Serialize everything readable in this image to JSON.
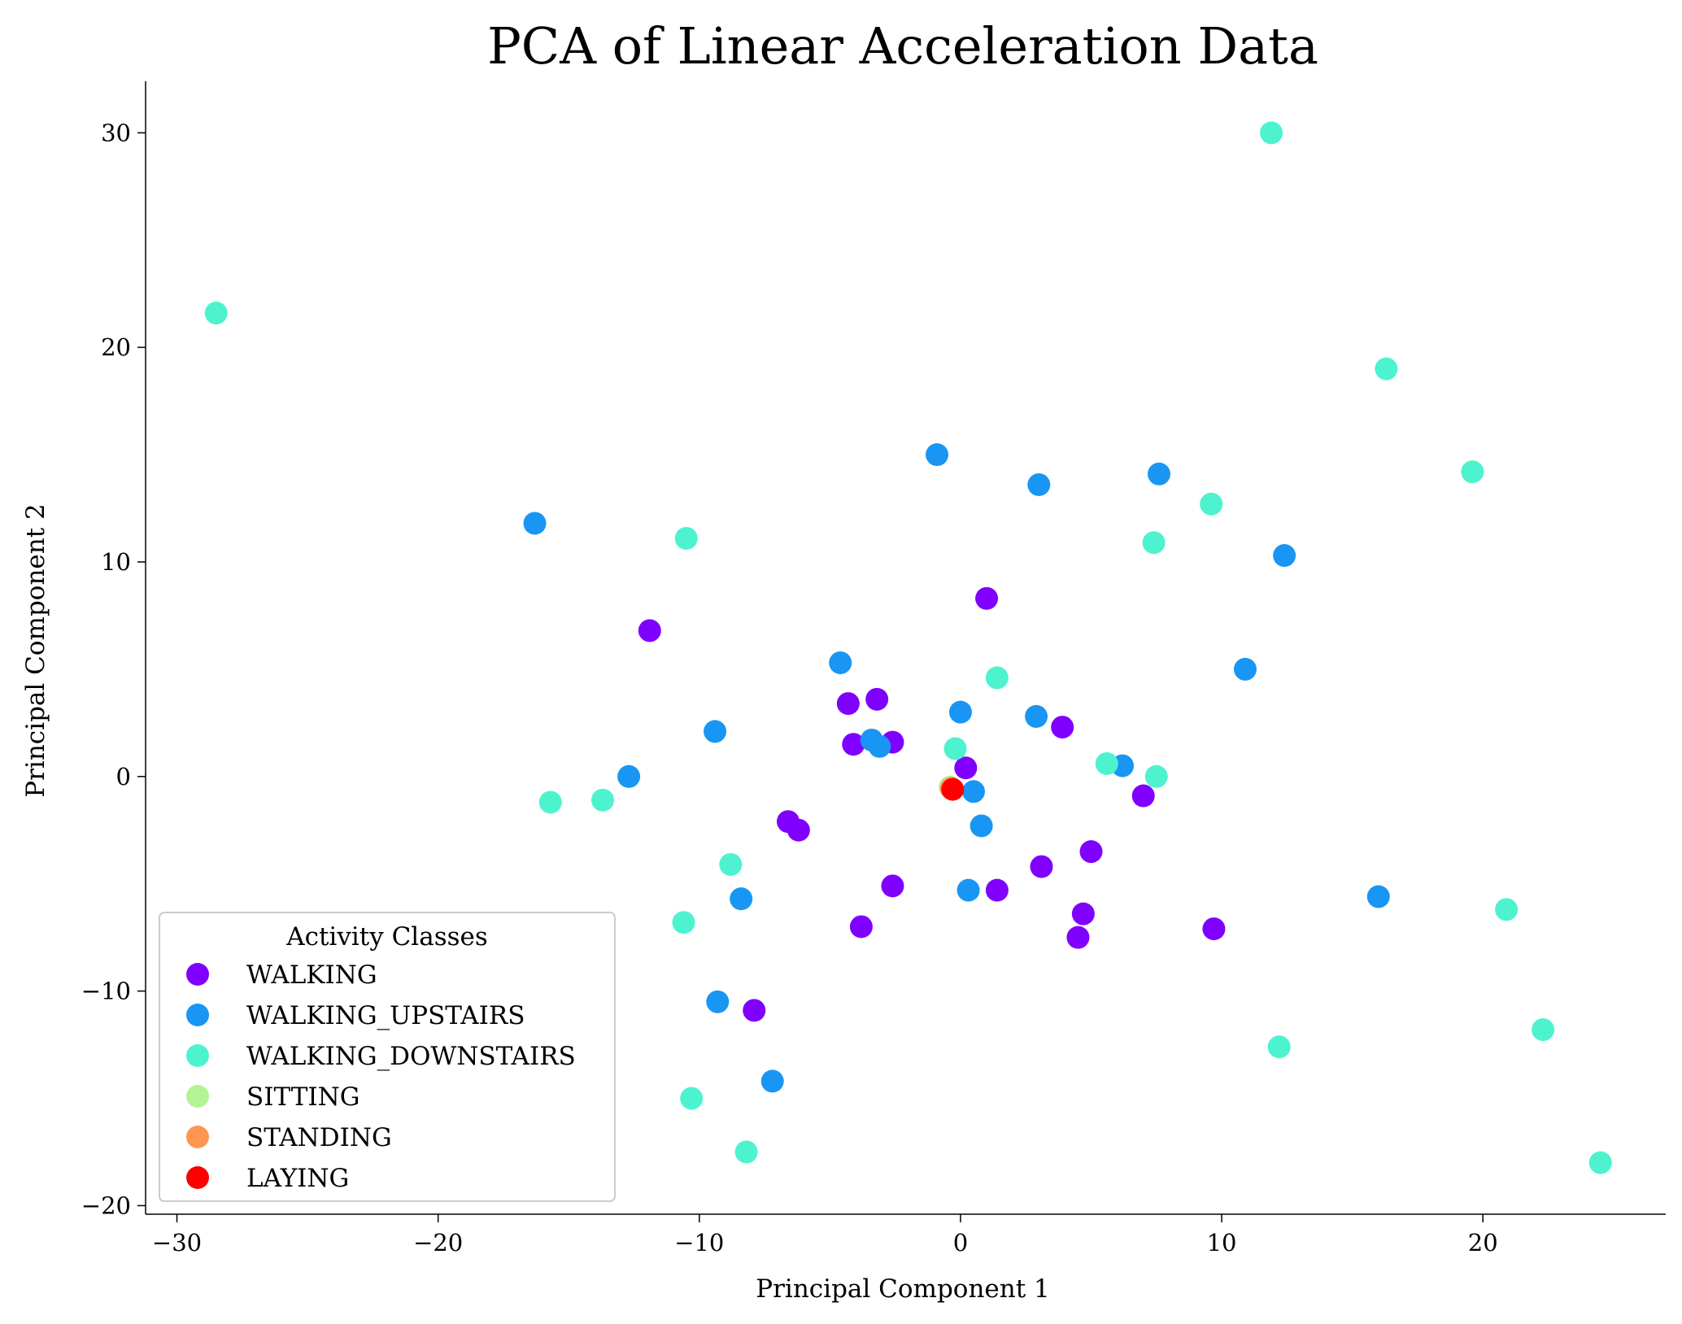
{
  "chart_data": {
    "type": "scatter",
    "title": "PCA of Linear Acceleration Data",
    "xlabel": "Principal Component 1",
    "ylabel": "Principal Component 2",
    "xlim": [
      -31.2,
      27.0
    ],
    "ylim": [
      -20.4,
      32.4
    ],
    "xticks": [
      -30,
      -20,
      -10,
      0,
      10,
      20
    ],
    "yticks": [
      -20,
      -10,
      0,
      10,
      20,
      30
    ],
    "xtick_labels": [
      "−30",
      "−20",
      "−10",
      "0",
      "10",
      "20"
    ],
    "ytick_labels": [
      "−20",
      "−10",
      "0",
      "10",
      "20",
      "30"
    ],
    "grid": false,
    "legend": {
      "title": "Activity Classes",
      "position": "lower-left"
    },
    "series": [
      {
        "name": "WALKING",
        "color": "#8000ff",
        "points": [
          [
            -11.9,
            6.8
          ],
          [
            1.0,
            8.3
          ],
          [
            -4.3,
            3.4
          ],
          [
            -3.2,
            3.6
          ],
          [
            -4.1,
            1.5
          ],
          [
            -2.6,
            1.6
          ],
          [
            0.2,
            0.4
          ],
          [
            3.9,
            2.3
          ],
          [
            7.0,
            -0.9
          ],
          [
            -6.6,
            -2.1
          ],
          [
            -6.2,
            -2.5
          ],
          [
            3.1,
            -4.2
          ],
          [
            5.0,
            -3.5
          ],
          [
            -2.6,
            -5.1
          ],
          [
            1.4,
            -5.3
          ],
          [
            -3.8,
            -7.0
          ],
          [
            4.7,
            -6.4
          ],
          [
            4.5,
            -7.5
          ],
          [
            9.7,
            -7.1
          ],
          [
            -7.9,
            -10.9
          ]
        ]
      },
      {
        "name": "WALKING_UPSTAIRS",
        "color": "#1996f3",
        "points": [
          [
            -16.3,
            11.8
          ],
          [
            -0.9,
            15.0
          ],
          [
            3.0,
            13.6
          ],
          [
            7.6,
            14.1
          ],
          [
            12.4,
            10.3
          ],
          [
            10.9,
            5.0
          ],
          [
            -4.6,
            5.3
          ],
          [
            0.0,
            3.0
          ],
          [
            2.9,
            2.8
          ],
          [
            -9.4,
            2.1
          ],
          [
            -3.4,
            1.7
          ],
          [
            -3.1,
            1.4
          ],
          [
            6.2,
            0.5
          ],
          [
            -12.7,
            0.0
          ],
          [
            0.5,
            -0.7
          ],
          [
            0.8,
            -2.3
          ],
          [
            0.3,
            -5.3
          ],
          [
            -8.4,
            -5.7
          ],
          [
            16.0,
            -5.6
          ],
          [
            -9.3,
            -10.5
          ],
          [
            -7.2,
            -14.2
          ]
        ]
      },
      {
        "name": "WALKING_DOWNSTAIRS",
        "color": "#4df3ce",
        "points": [
          [
            11.9,
            30.0
          ],
          [
            -28.5,
            21.6
          ],
          [
            16.3,
            19.0
          ],
          [
            19.6,
            14.2
          ],
          [
            9.6,
            12.7
          ],
          [
            7.4,
            10.9
          ],
          [
            -10.5,
            11.1
          ],
          [
            1.4,
            4.6
          ],
          [
            -0.2,
            1.3
          ],
          [
            5.6,
            0.6
          ],
          [
            7.5,
            0.0
          ],
          [
            -15.7,
            -1.2
          ],
          [
            -13.7,
            -1.1
          ],
          [
            -8.8,
            -4.1
          ],
          [
            -10.6,
            -6.8
          ],
          [
            20.9,
            -6.2
          ],
          [
            12.2,
            -12.6
          ],
          [
            22.3,
            -11.8
          ],
          [
            -10.3,
            -15.0
          ],
          [
            -8.2,
            -17.5
          ],
          [
            24.5,
            -18.0
          ]
        ]
      },
      {
        "name": "SITTING",
        "color": "#b2f396",
        "points": [
          [
            -0.4,
            -0.5
          ]
        ]
      },
      {
        "name": "STANDING",
        "color": "#ff964f",
        "points": [
          [
            -0.35,
            -0.55
          ]
        ]
      },
      {
        "name": "LAYING",
        "color": "#ff0000",
        "points": [
          [
            -0.3,
            -0.6
          ]
        ]
      }
    ]
  }
}
